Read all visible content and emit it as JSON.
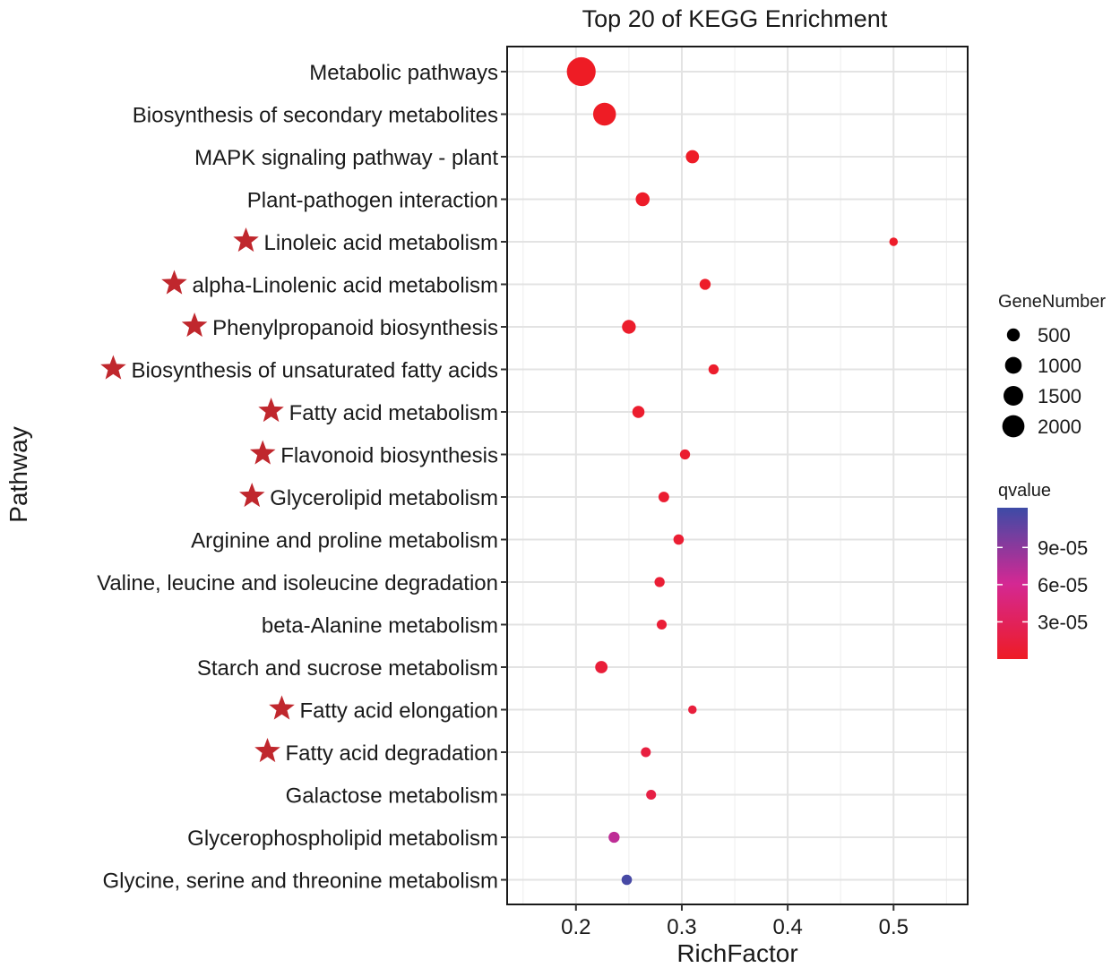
{
  "chart_data": {
    "type": "scatter",
    "title": "Top 20 of KEGG Enrichment",
    "xlabel": "RichFactor",
    "ylabel": "Pathway",
    "xlim": [
      0.135,
      0.57
    ],
    "xticks": [
      0.2,
      0.3,
      0.4,
      0.5
    ],
    "xtick_labels": [
      "0.2",
      "0.3",
      "0.4",
      "0.5"
    ],
    "grid": true,
    "size_legend": {
      "title": "GeneNumber",
      "values": [
        500,
        1000,
        1500,
        2000
      ],
      "labels": [
        "500",
        "1000",
        "1500",
        "2000"
      ]
    },
    "color_legend": {
      "title": "qvalue",
      "ticks": [
        3e-05,
        6e-05,
        9e-05
      ],
      "tick_labels": [
        "3e-05",
        "6e-05",
        "9e-05"
      ],
      "range": [
        0,
        0.000122
      ],
      "low_color": "#EE1C25",
      "mid_color": "#D42893",
      "high_color": "#3D4BA6"
    },
    "star_color": "#C0272D",
    "points": [
      {
        "pathway": "Metabolic pathways",
        "richFactor": 0.205,
        "geneNumber": 2200,
        "qvalue": 0.0,
        "starred": false
      },
      {
        "pathway": "Biosynthesis of secondary metabolites",
        "richFactor": 0.227,
        "geneNumber": 1250,
        "qvalue": 0.0,
        "starred": false
      },
      {
        "pathway": "MAPK signaling pathway - plant",
        "richFactor": 0.31,
        "geneNumber": 280,
        "qvalue": 1e-06,
        "starred": false
      },
      {
        "pathway": "Plant-pathogen interaction",
        "richFactor": 0.263,
        "geneNumber": 330,
        "qvalue": 2e-06,
        "starred": false
      },
      {
        "pathway": "Linoleic acid metabolism",
        "richFactor": 0.5,
        "geneNumber": 60,
        "qvalue": 3e-06,
        "starred": true
      },
      {
        "pathway": "alpha-Linolenic acid metabolism",
        "richFactor": 0.322,
        "geneNumber": 160,
        "qvalue": 3e-06,
        "starred": true
      },
      {
        "pathway": "Phenylpropanoid biosynthesis",
        "richFactor": 0.25,
        "geneNumber": 320,
        "qvalue": 4e-06,
        "starred": true
      },
      {
        "pathway": "Biosynthesis of unsaturated fatty acids",
        "richFactor": 0.33,
        "geneNumber": 120,
        "qvalue": 4e-06,
        "starred": true
      },
      {
        "pathway": "Fatty acid metabolism",
        "richFactor": 0.259,
        "geneNumber": 220,
        "qvalue": 5e-06,
        "starred": true
      },
      {
        "pathway": "Flavonoid biosynthesis",
        "richFactor": 0.303,
        "geneNumber": 120,
        "qvalue": 6e-06,
        "starred": true
      },
      {
        "pathway": "Glycerolipid metabolism",
        "richFactor": 0.283,
        "geneNumber": 140,
        "qvalue": 7e-06,
        "starred": true
      },
      {
        "pathway": "Arginine and proline metabolism",
        "richFactor": 0.297,
        "geneNumber": 130,
        "qvalue": 8e-06,
        "starred": false
      },
      {
        "pathway": "Valine, leucine and isoleucine degradation",
        "richFactor": 0.279,
        "geneNumber": 120,
        "qvalue": 9e-06,
        "starred": false
      },
      {
        "pathway": "beta-Alanine metabolism",
        "richFactor": 0.281,
        "geneNumber": 110,
        "qvalue": 1e-05,
        "starred": false
      },
      {
        "pathway": "Starch and sucrose metabolism",
        "richFactor": 0.224,
        "geneNumber": 230,
        "qvalue": 1.1e-05,
        "starred": false
      },
      {
        "pathway": "Fatty acid elongation",
        "richFactor": 0.31,
        "geneNumber": 60,
        "qvalue": 1.3e-05,
        "starred": true
      },
      {
        "pathway": "Fatty acid degradation",
        "richFactor": 0.266,
        "geneNumber": 110,
        "qvalue": 1.5e-05,
        "starred": true
      },
      {
        "pathway": "Galactose metabolism",
        "richFactor": 0.271,
        "geneNumber": 110,
        "qvalue": 1.8e-05,
        "starred": false
      },
      {
        "pathway": "Glycerophospholipid metabolism",
        "richFactor": 0.236,
        "geneNumber": 160,
        "qvalue": 7e-05,
        "starred": false
      },
      {
        "pathway": "Glycine, serine and threonine metabolism",
        "richFactor": 0.248,
        "geneNumber": 130,
        "qvalue": 0.000118,
        "starred": false
      }
    ]
  }
}
